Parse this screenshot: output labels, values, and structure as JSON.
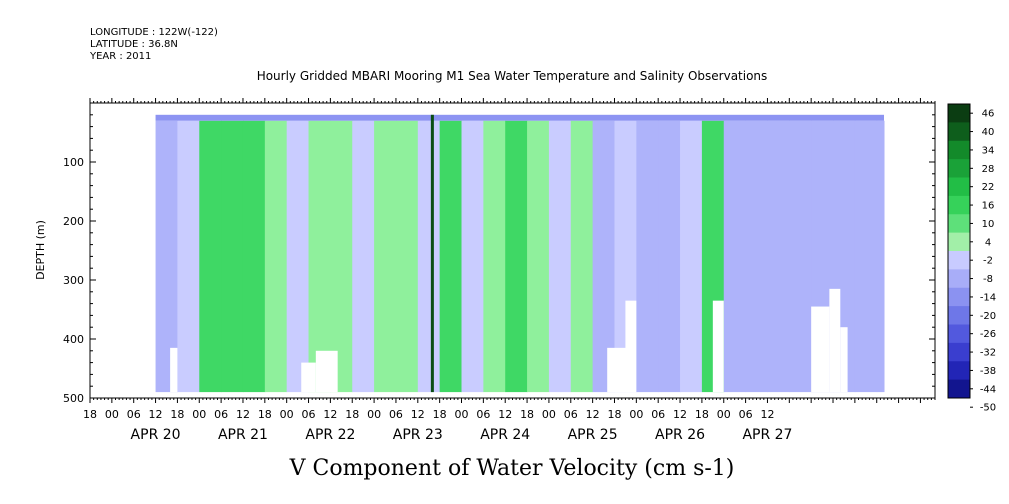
{
  "header": {
    "longitude": "LONGITUDE : 122W(-122)",
    "latitude": "LATITUDE : 36.8N",
    "year": "YEAR : 2011"
  },
  "chart_data": {
    "type": "heatmap",
    "title": "Hourly Gridded MBARI Mooring M1 Sea Water Temperature and Salinity Observations",
    "xlabel": "V Component of Water Velocity (cm s-1)",
    "ylabel": "DEPTH (m)",
    "ylim": [
      0,
      500
    ],
    "y_ticks": [
      100,
      200,
      300,
      400,
      500
    ],
    "x_hour_ticks": [
      "18",
      "00",
      "06",
      "12",
      "18",
      "00",
      "06",
      "12",
      "18",
      "00",
      "06",
      "12",
      "18",
      "00",
      "06",
      "12",
      "18",
      "00",
      "06",
      "12",
      "18",
      "00",
      "06",
      "12",
      "18",
      "00",
      "06",
      "12",
      "18",
      "00",
      "06",
      "12"
    ],
    "x_date_labels": [
      "APR 20",
      "APR 21",
      "APR 22",
      "APR 23",
      "APR 24",
      "APR 25",
      "APR 26",
      "APR 27"
    ],
    "colorbar_levels": [
      "46",
      "40",
      "34",
      "28",
      "22",
      "16",
      "10",
      "4",
      "-2",
      "-8",
      "-14",
      "-20",
      "-26",
      "-32",
      "-38",
      "-44",
      "-50"
    ],
    "colors": {
      "strong_positive": "#0a3d0a",
      "positive": "#22c84e",
      "weak_positive": "#a6f0a6",
      "weak_negative": "#b5b9ff",
      "negative": "#8c92f2",
      "strong_negative": "#0c0c66",
      "missing": "#ffffff"
    },
    "bands": [
      {
        "t": 0,
        "v": -6
      },
      {
        "t": 6,
        "v": -4
      },
      {
        "t": 12,
        "v": 10
      },
      {
        "t": 18,
        "v": 13
      },
      {
        "t": 24,
        "v": 8
      },
      {
        "t": 30,
        "v": 6
      },
      {
        "t": 36,
        "v": -4
      },
      {
        "t": 42,
        "v": 2
      },
      {
        "t": 48,
        "v": 4
      },
      {
        "t": 54,
        "v": -4
      },
      {
        "t": 60,
        "v": 6
      },
      {
        "t": 66,
        "v": 4
      },
      {
        "t": 72,
        "v": -4
      },
      {
        "t": 78,
        "v": 8
      },
      {
        "t": 84,
        "v": -2
      },
      {
        "t": 90,
        "v": 6
      },
      {
        "t": 96,
        "v": 8
      },
      {
        "t": 102,
        "v": 3
      },
      {
        "t": 108,
        "v": -2
      },
      {
        "t": 114,
        "v": 5
      },
      {
        "t": 120,
        "v": -6
      },
      {
        "t": 126,
        "v": -4
      },
      {
        "t": 132,
        "v": -8
      },
      {
        "t": 138,
        "v": -6
      },
      {
        "t": 144,
        "v": -4
      },
      {
        "t": 150,
        "v": 8
      },
      {
        "t": 156,
        "v": -8
      },
      {
        "t": 162,
        "v": -6
      },
      {
        "t": 168,
        "v": -6
      },
      {
        "t": 174,
        "v": -8
      },
      {
        "t": 180,
        "v": -6
      },
      {
        "t": 186,
        "v": -6
      },
      {
        "t": 192,
        "v": -8
      },
      {
        "t": 198,
        "v": -6
      }
    ],
    "surface_value": -16,
    "spike": {
      "t": 76,
      "v": 30
    },
    "missing_blocks": [
      {
        "t0": 4,
        "t1": 6,
        "d0": 415,
        "d1": 490
      },
      {
        "t0": 44,
        "t1": 50,
        "d0": 420,
        "d1": 490
      },
      {
        "t0": 40,
        "t1": 44,
        "d0": 440,
        "d1": 490
      },
      {
        "t0": 124,
        "t1": 130,
        "d0": 415,
        "d1": 490
      },
      {
        "t0": 129,
        "t1": 132,
        "d0": 335,
        "d1": 490
      },
      {
        "t0": 153,
        "t1": 156,
        "d0": 335,
        "d1": 490
      },
      {
        "t0": 180,
        "t1": 185,
        "d0": 345,
        "d1": 490
      },
      {
        "t0": 185,
        "t1": 188,
        "d0": 315,
        "d1": 490
      },
      {
        "t0": 188,
        "t1": 190,
        "d0": 380,
        "d1": 490
      }
    ]
  }
}
